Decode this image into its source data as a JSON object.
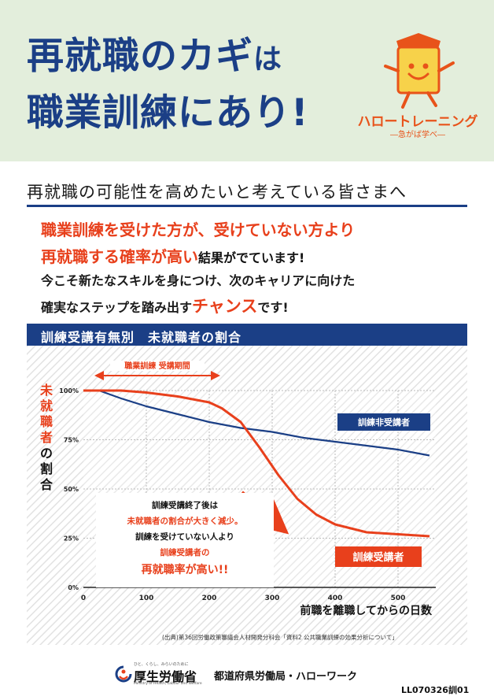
{
  "header": {
    "headline_line1_main": "再就職のカギ",
    "headline_line1_tail": "は",
    "headline_line2": "職業訓練にあり!",
    "brand_name": "ハロートレーニング",
    "brand_tagline": "―急がば学べ―"
  },
  "audience": "再就職の可能性を高めたいと考えている皆さまへ",
  "body": {
    "line1": "職業訓練を受けた方が、受けていない方より",
    "line2_red": "再就職する確率が高い",
    "line2_black": "結果がでています!",
    "line3": "今こそ新たなスキルを身につけ、次のキャリアに向けた",
    "line4_a": "確実なステップを踏み出す",
    "line4_red": "チャンス",
    "line4_b": "です!"
  },
  "chart_data": {
    "type": "line",
    "title": "訓練受講有無別　未就職者の割合",
    "ylabel": "未就職者の割合",
    "ylabel_red_part": "未就職者",
    "ylabel_black_part": "の割合",
    "xlabel": "前職を離職してからの日数",
    "xlim": [
      0,
      560
    ],
    "ylim": [
      0,
      100
    ],
    "x_ticks": [
      0,
      100,
      200,
      300,
      400,
      500
    ],
    "x_tick_labels": [
      "0",
      "100",
      "200",
      "300",
      "400",
      "500"
    ],
    "y_ticks": [
      0,
      25,
      50,
      75,
      100
    ],
    "y_tick_labels": [
      "0%",
      "25%",
      "50%",
      "75%",
      "100%"
    ],
    "grid": true,
    "training_period_label": "職業訓練 受講期間",
    "training_period": [
      20,
      215
    ],
    "series": [
      {
        "name": "訓練非受講者",
        "color": "#1b3f86",
        "x": [
          0,
          25,
          60,
          100,
          150,
          200,
          250,
          300,
          350,
          400,
          450,
          500,
          550
        ],
        "values": [
          100,
          100,
          96,
          92,
          88,
          84,
          81,
          79,
          76,
          74,
          72,
          70,
          67
        ]
      },
      {
        "name": "訓練受講者",
        "color": "#e8401c",
        "x": [
          0,
          25,
          60,
          100,
          150,
          200,
          220,
          250,
          280,
          310,
          340,
          370,
          400,
          450,
          500,
          550
        ],
        "values": [
          100,
          100,
          100,
          99,
          97,
          94,
          91,
          84,
          71,
          57,
          45,
          37,
          32,
          28,
          27,
          26
        ]
      }
    ],
    "annotation": {
      "line1": "訓練受講終了後は",
      "line2": "未就職者の割合が大きく減少。",
      "line3": "訓練を受けていない人より",
      "line4": "訓練受講者の",
      "line5": "再就職率が高い!!"
    }
  },
  "source_note": "(出典)第36回労働政策審議会人材開発分科会「資料2 公共職業訓練の効果分析について」",
  "footer": {
    "ministry_kana": "ひと、くらし、みらいのために",
    "ministry": "厚生労働省",
    "ministry_en": "Ministry of Health, Labour and Welfare",
    "office": "都道府県労働局・ハローワーク",
    "code": "LL070326訓01"
  },
  "colors": {
    "navy": "#1b3f86",
    "red": "#e8401c",
    "orange": "#e8531a",
    "header_bg": "#e3eedc"
  }
}
